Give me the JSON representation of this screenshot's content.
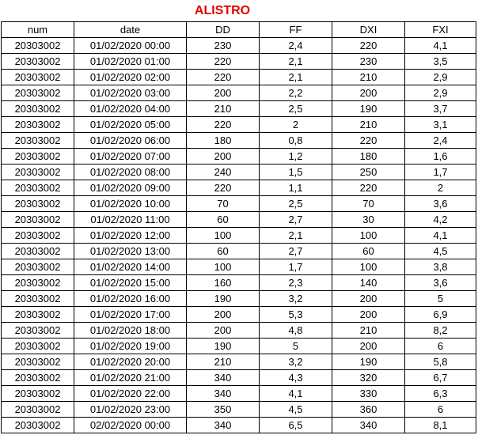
{
  "title": "ALISTRO",
  "columns": [
    "num",
    "date",
    "DD",
    "FF",
    "DXI",
    "FXI"
  ],
  "rows": [
    [
      "20303002",
      "01/02/2020 00:00",
      "230",
      "2,4",
      "220",
      "4,1"
    ],
    [
      "20303002",
      "01/02/2020 01:00",
      "220",
      "2,1",
      "230",
      "3,5"
    ],
    [
      "20303002",
      "01/02/2020 02:00",
      "220",
      "2,1",
      "210",
      "2,9"
    ],
    [
      "20303002",
      "01/02/2020 03:00",
      "200",
      "2,2",
      "200",
      "2,9"
    ],
    [
      "20303002",
      "01/02/2020 04:00",
      "210",
      "2,5",
      "190",
      "3,7"
    ],
    [
      "20303002",
      "01/02/2020 05:00",
      "220",
      "2",
      "210",
      "3,1"
    ],
    [
      "20303002",
      "01/02/2020 06:00",
      "180",
      "0,8",
      "220",
      "2,4"
    ],
    [
      "20303002",
      "01/02/2020 07:00",
      "200",
      "1,2",
      "180",
      "1,6"
    ],
    [
      "20303002",
      "01/02/2020 08:00",
      "240",
      "1,5",
      "250",
      "1,7"
    ],
    [
      "20303002",
      "01/02/2020 09:00",
      "220",
      "1,1",
      "220",
      "2"
    ],
    [
      "20303002",
      "01/02/2020 10:00",
      "70",
      "2,5",
      "70",
      "3,6"
    ],
    [
      "20303002",
      "01/02/2020 11:00",
      "60",
      "2,7",
      "30",
      "4,2"
    ],
    [
      "20303002",
      "01/02/2020 12:00",
      "100",
      "2,1",
      "100",
      "4,1"
    ],
    [
      "20303002",
      "01/02/2020 13:00",
      "60",
      "2,7",
      "60",
      "4,5"
    ],
    [
      "20303002",
      "01/02/2020 14:00",
      "100",
      "1,7",
      "100",
      "3,8"
    ],
    [
      "20303002",
      "01/02/2020 15:00",
      "160",
      "2,3",
      "140",
      "3,6"
    ],
    [
      "20303002",
      "01/02/2020 16:00",
      "190",
      "3,2",
      "200",
      "5"
    ],
    [
      "20303002",
      "01/02/2020 17:00",
      "200",
      "5,3",
      "200",
      "6,9"
    ],
    [
      "20303002",
      "01/02/2020 18:00",
      "200",
      "4,8",
      "210",
      "8,2"
    ],
    [
      "20303002",
      "01/02/2020 19:00",
      "190",
      "5",
      "200",
      "6"
    ],
    [
      "20303002",
      "01/02/2020 20:00",
      "210",
      "3,2",
      "190",
      "5,8"
    ],
    [
      "20303002",
      "01/02/2020 21:00",
      "340",
      "4,3",
      "320",
      "6,7"
    ],
    [
      "20303002",
      "01/02/2020 22:00",
      "340",
      "4,1",
      "330",
      "6,3"
    ],
    [
      "20303002",
      "01/02/2020 23:00",
      "350",
      "4,5",
      "360",
      "6"
    ],
    [
      "20303002",
      "02/02/2020 00:00",
      "340",
      "6,5",
      "340",
      "8,1"
    ]
  ]
}
